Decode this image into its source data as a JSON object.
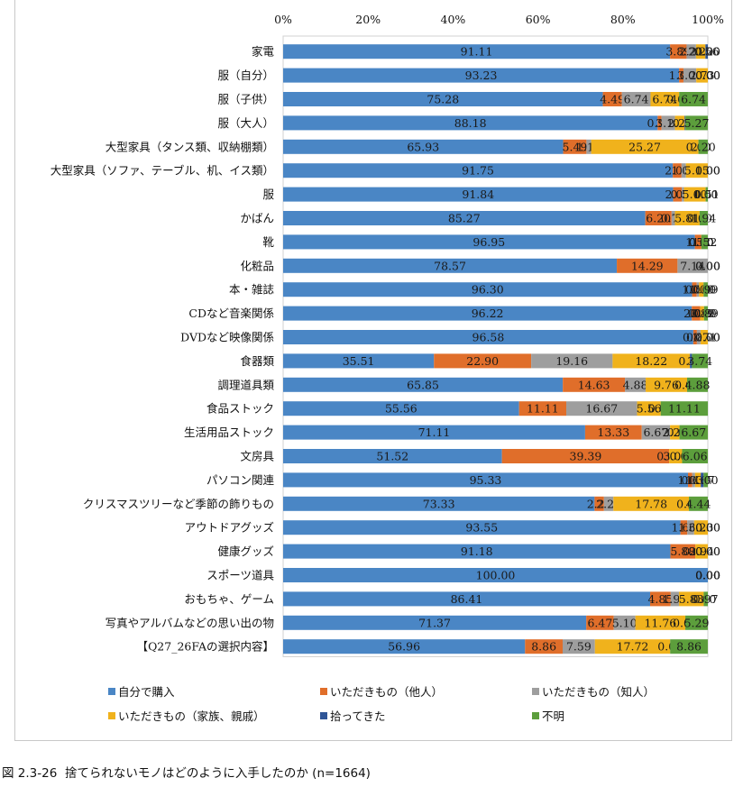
{
  "caption": "図 2.3-26  捨てられないモノはどのように入手したのか (n=1664)",
  "chart_data": {
    "type": "bar",
    "orientation": "horizontal",
    "stacked": "percent",
    "title": "",
    "xlabel": "",
    "ylabel": "",
    "xlim": [
      0,
      100
    ],
    "x_ticks": [
      "0%",
      "20%",
      "40%",
      "60%",
      "80%",
      "100%"
    ],
    "grid": false,
    "legend_position": "bottom",
    "note": "Rows marked estimated=true have overlapping data labels at the right edge; those segment values were estimated so that rows sum to ~100 and are not exact readings.",
    "series": [
      {
        "name": "自分で購入",
        "color": "#4a86c5"
      },
      {
        "name": "いただきもの（他人）",
        "color": "#e06e2a"
      },
      {
        "name": "いただきもの（知人）",
        "color": "#9e9e9e"
      },
      {
        "name": "いただきもの（家族、親戚）",
        "color": "#f0b21c"
      },
      {
        "name": "拾ってきた",
        "color": "#2f5597"
      },
      {
        "name": "不明",
        "color": "#5c9e3c"
      }
    ],
    "rows": [
      {
        "category": "家電",
        "values": [
          91.11,
          3.89,
          2.22,
          2.22,
          0.56,
          0.0
        ],
        "estimated": true
      },
      {
        "category": "服（自分）",
        "values": [
          93.23,
          1.03,
          3.01,
          2.73,
          0.0,
          0.0
        ],
        "estimated": true
      },
      {
        "category": "服（子供）",
        "values": [
          75.28,
          4.49,
          6.74,
          6.74,
          0.0,
          6.74
        ],
        "estimated": false
      },
      {
        "category": "服（大人）",
        "values": [
          88.18,
          0.91,
          3.18,
          2.27,
          0.18,
          5.27
        ],
        "estimated": true
      },
      {
        "category": "大型家具（タンス類、収納棚類）",
        "values": [
          65.93,
          5.49,
          1.1,
          25.27,
          0.0,
          2.2
        ],
        "estimated": false
      },
      {
        "category": "大型家具（ソファ、テーブル、机、イス類）",
        "values": [
          91.75,
          2.06,
          1.03,
          5.15,
          0.0,
          0.0
        ],
        "estimated": true
      },
      {
        "category": "服",
        "values": [
          91.84,
          2.04,
          0.51,
          5.1,
          0.0,
          0.51
        ],
        "estimated": true
      },
      {
        "category": "かばん",
        "values": [
          85.27,
          6.2,
          0.78,
          5.81,
          0.0,
          1.94
        ],
        "estimated": true
      },
      {
        "category": "靴",
        "values": [
          96.95,
          1.52,
          0.0,
          0.0,
          0.0,
          1.52
        ],
        "estimated": true
      },
      {
        "category": "化粧品",
        "values": [
          78.57,
          14.29,
          7.14,
          0.0,
          0.0,
          0.0
        ],
        "estimated": false
      },
      {
        "category": "本・雑誌",
        "values": [
          96.3,
          1.08,
          0.54,
          1.08,
          0.0,
          0.99
        ],
        "estimated": true
      },
      {
        "category": "CDなど音楽関係",
        "values": [
          96.22,
          2.0,
          0.0,
          0.89,
          0.0,
          0.89
        ],
        "estimated": true
      },
      {
        "category": "DVDなど映像関係",
        "values": [
          96.58,
          0.85,
          0.85,
          1.71,
          0.0,
          0.0
        ],
        "estimated": true
      },
      {
        "category": "食器類",
        "values": [
          35.51,
          22.9,
          19.16,
          18.22,
          0.47,
          3.74
        ],
        "estimated": false
      },
      {
        "category": "調理道具類",
        "values": [
          65.85,
          14.63,
          4.88,
          9.76,
          0.0,
          4.88
        ],
        "estimated": false
      },
      {
        "category": "食品ストック",
        "values": [
          55.56,
          11.11,
          16.67,
          5.56,
          0.0,
          11.11
        ],
        "estimated": false
      },
      {
        "category": "生活用品ストック",
        "values": [
          71.11,
          13.33,
          6.67,
          2.22,
          0.0,
          6.67
        ],
        "estimated": false
      },
      {
        "category": "文房具",
        "values": [
          51.52,
          39.39,
          0.0,
          3.03,
          0.0,
          6.06
        ],
        "estimated": true
      },
      {
        "category": "パソコン関連",
        "values": [
          95.33,
          1.0,
          0.67,
          1.33,
          0.67,
          1.0
        ],
        "estimated": true
      },
      {
        "category": "クリスマスツリーなど季節の飾りもの",
        "values": [
          73.33,
          2.22,
          2.22,
          17.78,
          0.0,
          4.44
        ],
        "estimated": false
      },
      {
        "category": "アウトドアグッズ",
        "values": [
          93.55,
          1.61,
          1.61,
          3.23,
          0.0,
          0.0
        ],
        "estimated": true
      },
      {
        "category": "健康グッズ",
        "values": [
          91.18,
          5.88,
          0.0,
          2.94,
          0.0,
          0.0
        ],
        "estimated": true
      },
      {
        "category": "スポーツ道具",
        "values": [
          100.0,
          0.0,
          0.0,
          0.0,
          0.0,
          0.0
        ],
        "estimated": false
      },
      {
        "category": "おもちゃ、ゲーム",
        "values": [
          86.41,
          4.85,
          1.94,
          5.83,
          0.0,
          0.97
        ],
        "estimated": true
      },
      {
        "category": "写真やアルバムなどの思い出の物",
        "values": [
          71.37,
          6.47,
          5.1,
          11.76,
          0.0,
          5.29
        ],
        "estimated": false
      },
      {
        "category": "【Q27_26FAの選択内容】",
        "values": [
          56.96,
          8.86,
          7.59,
          17.72,
          0.0,
          8.86
        ],
        "estimated": false
      }
    ]
  }
}
